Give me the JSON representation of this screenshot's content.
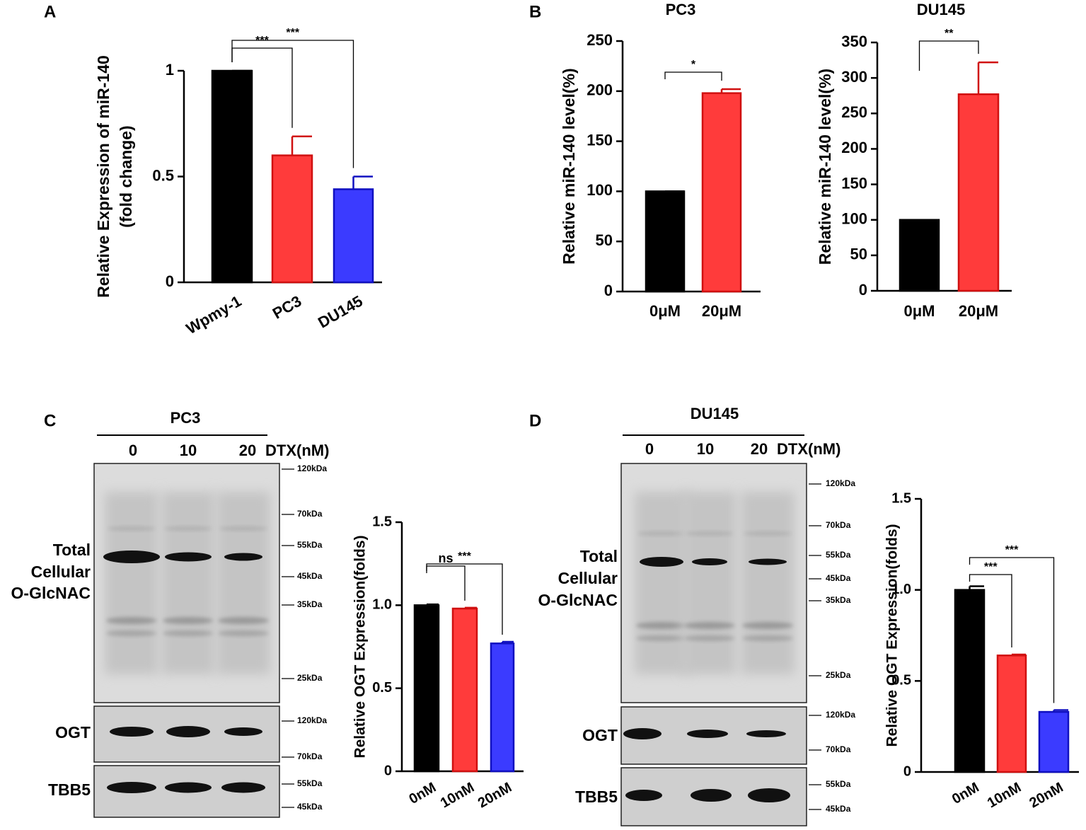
{
  "panels": [
    "A",
    "B",
    "C",
    "D"
  ],
  "chart_data": [
    {
      "type": "bar",
      "ylabel": [
        "Relative Expression of miR-140",
        "(fold change)"
      ],
      "categories": [
        "Wpmy-1",
        "PC3",
        "DU145"
      ],
      "values": [
        1,
        0.6,
        0.44
      ],
      "errors": [
        0,
        0.09,
        0.06
      ],
      "colors": [
        "#000000",
        "#ff3b3b",
        "#3b3bff"
      ],
      "ylim": [
        0,
        1
      ],
      "yticks": [
        0,
        0.5,
        1
      ],
      "significance": [
        {
          "pair": [
            0,
            1
          ],
          "label": "***"
        },
        {
          "pair": [
            0,
            2
          ],
          "label": "***"
        }
      ]
    },
    {
      "type": "bar",
      "title": "PC3",
      "ylabel": [
        "Relative miR-140 level(%)"
      ],
      "categories": [
        "0μM",
        "20μM"
      ],
      "values": [
        100,
        198
      ],
      "errors": [
        0,
        4
      ],
      "colors": [
        "#000000",
        "#ff3b3b"
      ],
      "ylim": [
        0,
        250
      ],
      "yticks": [
        0,
        50,
        100,
        150,
        200,
        250
      ],
      "significance": [
        {
          "pair": [
            0,
            1
          ],
          "label": "*"
        }
      ]
    },
    {
      "type": "bar",
      "title": "DU145",
      "ylabel": [
        "Relative miR-140 level(%)"
      ],
      "categories": [
        "0μM",
        "20μM"
      ],
      "values": [
        100,
        277
      ],
      "errors": [
        0,
        45
      ],
      "colors": [
        "#000000",
        "#ff3b3b"
      ],
      "ylim": [
        0,
        350
      ],
      "yticks": [
        0,
        50,
        100,
        150,
        200,
        250,
        300,
        350
      ],
      "significance": [
        {
          "pair": [
            0,
            1
          ],
          "label": "**"
        }
      ]
    },
    {
      "type": "bar",
      "ylabel": [
        "Relative OGT Expression(folds)"
      ],
      "categories": [
        "0nM",
        "10nM",
        "20nM"
      ],
      "values": [
        1.0,
        0.98,
        0.77
      ],
      "errors": [
        0.005,
        0.005,
        0.01
      ],
      "colors": [
        "#000000",
        "#ff3b3b",
        "#3b3bff"
      ],
      "ylim": [
        0,
        1.5
      ],
      "yticks": [
        0,
        0.5,
        {
          "value": 1,
          "label": "1.0"
        },
        1.5
      ],
      "significance": [
        {
          "pair": [
            0,
            1
          ],
          "label": "ns"
        },
        {
          "pair": [
            0,
            2
          ],
          "label": "***"
        }
      ]
    },
    {
      "type": "bar",
      "ylabel": [
        "Relative OGT Expression(folds)"
      ],
      "categories": [
        "0nM",
        "10nM",
        "20nM"
      ],
      "values": [
        1.0,
        0.64,
        0.33
      ],
      "errors": [
        0.02,
        0.005,
        0.01
      ],
      "colors": [
        "#000000",
        "#ff3b3b",
        "#3b3bff"
      ],
      "ylim": [
        0,
        1.5
      ],
      "yticks": [
        0,
        0.5,
        {
          "value": 1,
          "label": "1.0"
        },
        1.5
      ],
      "significance": [
        {
          "pair": [
            0,
            1
          ],
          "label": "***"
        },
        {
          "pair": [
            0,
            2
          ],
          "label": "***"
        }
      ]
    }
  ],
  "blots": [
    {
      "title": "PC3",
      "lanes": [
        "0",
        "10",
        "20"
      ],
      "unit": "DTX(nM)",
      "rows": [
        {
          "label": [
            "Total",
            "Cellular",
            "O-GlcNAC"
          ],
          "markers": [
            "120kDa",
            "70kDa",
            "55kDa",
            "45kDa",
            "35kDa",
            "25kDa"
          ]
        },
        {
          "label": [
            "OGT"
          ],
          "markers": [
            "120kDa",
            "70kDa"
          ]
        },
        {
          "label": [
            "TBB5"
          ],
          "markers": [
            "55kDa",
            "45kDa"
          ]
        }
      ]
    },
    {
      "title": "DU145",
      "lanes": [
        "0",
        "10",
        "20"
      ],
      "unit": "DTX(nM)",
      "rows": [
        {
          "label": [
            "Total",
            "Cellular",
            "O-GlcNAC"
          ],
          "markers": [
            "120kDa",
            "70kDa",
            "55kDa",
            "45kDa",
            "35kDa",
            "25kDa"
          ]
        },
        {
          "label": [
            "OGT"
          ],
          "markers": [
            "120kDa",
            "70kDa"
          ]
        },
        {
          "label": [
            "TBB5"
          ],
          "markers": [
            "55kDa",
            "45kDa"
          ]
        }
      ]
    }
  ]
}
